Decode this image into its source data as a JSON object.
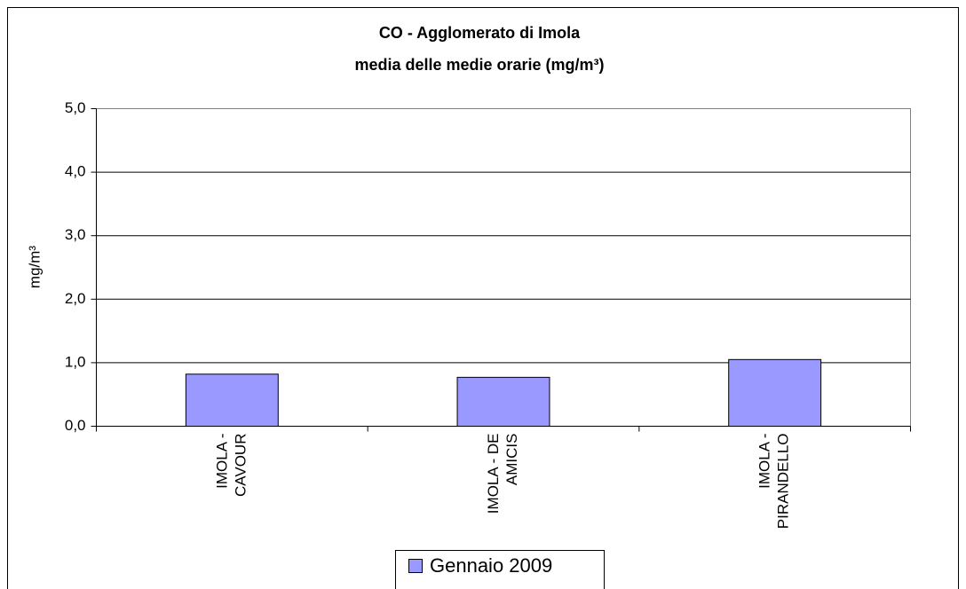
{
  "chart_data": {
    "type": "bar",
    "title": [
      "CO - Agglomerato di Imola",
      "media delle medie orarie  (mg/m³)"
    ],
    "y_label": "mg/m³",
    "categories": [
      [
        "IMOLA -",
        "CAVOUR"
      ],
      [
        "IMOLA - DE",
        "AMICIS"
      ],
      [
        "IMOLA -",
        "PIRANDELLO"
      ]
    ],
    "series": [
      {
        "name": "Gennaio 2009",
        "color": "#9999ff",
        "values": [
          0.82,
          0.77,
          1.05
        ]
      }
    ],
    "ylim": [
      0,
      5
    ],
    "yticks": [
      {
        "value": 0,
        "label": "0,0"
      },
      {
        "value": 1,
        "label": "1,0"
      },
      {
        "value": 2,
        "label": "2,0"
      },
      {
        "value": 3,
        "label": "3,0"
      },
      {
        "value": 4,
        "label": "4,0"
      },
      {
        "value": 5,
        "label": "5,0"
      }
    ],
    "grid": true
  }
}
